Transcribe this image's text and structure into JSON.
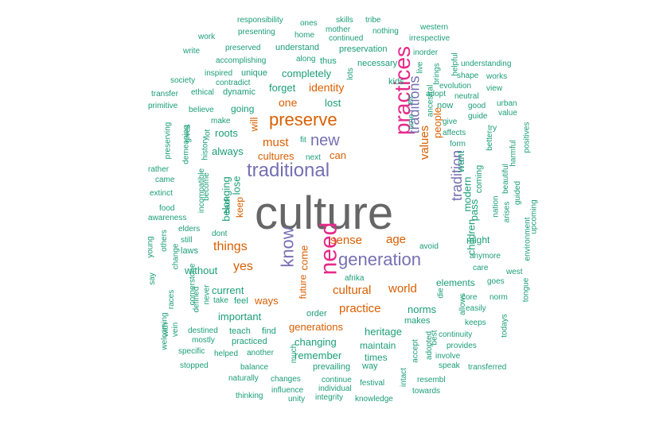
{
  "colors": {
    "teal": "#1b9e77",
    "orange": "#d95f02",
    "purple": "#7570b3",
    "pink": "#e7298a",
    "gray": "#666666"
  },
  "words": [
    {
      "t": "culture",
      "c": "gray"
    },
    {
      "t": "need",
      "c": "pink"
    },
    {
      "t": "practices",
      "c": "pink"
    },
    {
      "t": "traditional",
      "c": "purple"
    },
    {
      "t": "generation",
      "c": "purple"
    },
    {
      "t": "know",
      "c": "purple"
    },
    {
      "t": "preserve",
      "c": "orange"
    },
    {
      "t": "new",
      "c": "purple"
    },
    {
      "t": "traditions",
      "c": "purple"
    },
    {
      "t": "tradition",
      "c": "purple"
    },
    {
      "t": "values",
      "c": "orange"
    },
    {
      "t": "must",
      "c": "orange"
    },
    {
      "t": "identity",
      "c": "orange"
    },
    {
      "t": "one",
      "c": "orange"
    },
    {
      "t": "cultures",
      "c": "orange"
    },
    {
      "t": "can",
      "c": "orange"
    },
    {
      "t": "will",
      "c": "orange"
    },
    {
      "t": "things",
      "c": "orange"
    },
    {
      "t": "yes",
      "c": "orange"
    },
    {
      "t": "sense",
      "c": "orange"
    },
    {
      "t": "age",
      "c": "orange"
    },
    {
      "t": "cultural",
      "c": "orange"
    },
    {
      "t": "world",
      "c": "orange"
    },
    {
      "t": "practice",
      "c": "orange"
    },
    {
      "t": "ways",
      "c": "orange"
    },
    {
      "t": "future",
      "c": "orange"
    },
    {
      "t": "generations",
      "c": "orange"
    },
    {
      "t": "come",
      "c": "orange"
    },
    {
      "t": "keep",
      "c": "orange"
    },
    {
      "t": "lost",
      "c": "teal"
    },
    {
      "t": "forget",
      "c": "teal"
    },
    {
      "t": "completely",
      "c": "teal"
    },
    {
      "t": "going",
      "c": "teal"
    },
    {
      "t": "roots",
      "c": "teal"
    },
    {
      "t": "always",
      "c": "teal"
    },
    {
      "t": "people",
      "c": "orange"
    },
    {
      "t": "modern",
      "c": "teal"
    },
    {
      "t": "want",
      "c": "teal"
    },
    {
      "t": "pass",
      "c": "teal"
    },
    {
      "t": "children",
      "c": "teal"
    },
    {
      "t": "might",
      "c": "teal"
    },
    {
      "t": "coming",
      "c": "teal"
    },
    {
      "t": "heritage",
      "c": "teal"
    },
    {
      "t": "norms",
      "c": "teal"
    },
    {
      "t": "remember",
      "c": "teal"
    },
    {
      "t": "changing",
      "c": "teal"
    },
    {
      "t": "maintain",
      "c": "teal"
    },
    {
      "t": "times",
      "c": "teal"
    },
    {
      "t": "important",
      "c": "teal"
    },
    {
      "t": "current",
      "c": "teal"
    },
    {
      "t": "without",
      "c": "teal"
    },
    {
      "t": "elements",
      "c": "teal"
    },
    {
      "t": "belonging",
      "c": "teal"
    },
    {
      "t": "lose",
      "c": "teal"
    },
    {
      "t": "responsibility",
      "c": "teal"
    },
    {
      "t": "ones",
      "c": "teal"
    },
    {
      "t": "skills",
      "c": "teal"
    },
    {
      "t": "tribe",
      "c": "teal"
    },
    {
      "t": "western",
      "c": "teal"
    },
    {
      "t": "work",
      "c": "teal"
    },
    {
      "t": "presenting",
      "c": "teal"
    },
    {
      "t": "home",
      "c": "teal"
    },
    {
      "t": "mother",
      "c": "teal"
    },
    {
      "t": "continued",
      "c": "teal"
    },
    {
      "t": "nothing",
      "c": "teal"
    },
    {
      "t": "irrespective",
      "c": "teal"
    },
    {
      "t": "write",
      "c": "teal"
    },
    {
      "t": "preserved",
      "c": "teal"
    },
    {
      "t": "understand",
      "c": "teal"
    },
    {
      "t": "preservation",
      "c": "teal"
    },
    {
      "t": "inorder",
      "c": "teal"
    },
    {
      "t": "accomplishing",
      "c": "teal"
    },
    {
      "t": "along",
      "c": "teal"
    },
    {
      "t": "thus",
      "c": "teal"
    },
    {
      "t": "necessary",
      "c": "teal"
    },
    {
      "t": "understanding",
      "c": "teal"
    },
    {
      "t": "inspired",
      "c": "teal"
    },
    {
      "t": "unique",
      "c": "teal"
    },
    {
      "t": "shape",
      "c": "teal"
    },
    {
      "t": "works",
      "c": "teal"
    },
    {
      "t": "society",
      "c": "teal"
    },
    {
      "t": "contradict",
      "c": "teal"
    },
    {
      "t": "kids",
      "c": "teal"
    },
    {
      "t": "evolution",
      "c": "teal"
    },
    {
      "t": "view",
      "c": "teal"
    },
    {
      "t": "transfer",
      "c": "teal"
    },
    {
      "t": "ethical",
      "c": "teal"
    },
    {
      "t": "dynamic",
      "c": "teal"
    },
    {
      "t": "adopt",
      "c": "teal"
    },
    {
      "t": "neutral",
      "c": "teal"
    },
    {
      "t": "primitive",
      "c": "teal"
    },
    {
      "t": "believe",
      "c": "teal"
    },
    {
      "t": "now",
      "c": "teal"
    },
    {
      "t": "good",
      "c": "teal"
    },
    {
      "t": "urban",
      "c": "teal"
    },
    {
      "t": "guide",
      "c": "teal"
    },
    {
      "t": "value",
      "c": "teal"
    },
    {
      "t": "make",
      "c": "teal"
    },
    {
      "t": "give",
      "c": "teal"
    },
    {
      "t": "affects",
      "c": "teal"
    },
    {
      "t": "try",
      "c": "teal"
    },
    {
      "t": "form",
      "c": "teal"
    },
    {
      "t": "fit",
      "c": "teal"
    },
    {
      "t": "next",
      "c": "teal"
    },
    {
      "t": "rather",
      "c": "teal"
    },
    {
      "t": "came",
      "c": "teal"
    },
    {
      "t": "extinct",
      "c": "teal"
    },
    {
      "t": "food",
      "c": "teal"
    },
    {
      "t": "awareness",
      "c": "teal"
    },
    {
      "t": "elders",
      "c": "teal"
    },
    {
      "t": "still",
      "c": "teal"
    },
    {
      "t": "laws",
      "c": "teal"
    },
    {
      "t": "dont",
      "c": "teal"
    },
    {
      "t": "nation",
      "c": "teal"
    },
    {
      "t": "arises",
      "c": "teal"
    },
    {
      "t": "anymore",
      "c": "teal"
    },
    {
      "t": "care",
      "c": "teal"
    },
    {
      "t": "west",
      "c": "teal"
    },
    {
      "t": "goes",
      "c": "teal"
    },
    {
      "t": "avoid",
      "c": "teal"
    },
    {
      "t": "afrika",
      "c": "teal"
    },
    {
      "t": "die",
      "c": "teal"
    },
    {
      "t": "core",
      "c": "teal"
    },
    {
      "t": "norm",
      "c": "teal"
    },
    {
      "t": "easily",
      "c": "teal"
    },
    {
      "t": "keeps",
      "c": "teal"
    },
    {
      "t": "makes",
      "c": "teal"
    },
    {
      "t": "order",
      "c": "teal"
    },
    {
      "t": "take",
      "c": "teal"
    },
    {
      "t": "feel",
      "c": "teal"
    },
    {
      "t": "never",
      "c": "teal"
    },
    {
      "t": "defined",
      "c": "teal"
    },
    {
      "t": "destined",
      "c": "teal"
    },
    {
      "t": "teach",
      "c": "teal"
    },
    {
      "t": "find",
      "c": "teal"
    },
    {
      "t": "mostly",
      "c": "teal"
    },
    {
      "t": "practiced",
      "c": "teal"
    },
    {
      "t": "specific",
      "c": "teal"
    },
    {
      "t": "helped",
      "c": "teal"
    },
    {
      "t": "another",
      "c": "teal"
    },
    {
      "t": "continuity",
      "c": "teal"
    },
    {
      "t": "provides",
      "c": "teal"
    },
    {
      "t": "involve",
      "c": "teal"
    },
    {
      "t": "speak",
      "c": "teal"
    },
    {
      "t": "transferred",
      "c": "teal"
    },
    {
      "t": "stopped",
      "c": "teal"
    },
    {
      "t": "balance",
      "c": "teal"
    },
    {
      "t": "prevailing",
      "c": "teal"
    },
    {
      "t": "way",
      "c": "teal"
    },
    {
      "t": "naturally",
      "c": "teal"
    },
    {
      "t": "changes",
      "c": "teal"
    },
    {
      "t": "continue",
      "c": "teal"
    },
    {
      "t": "festival",
      "c": "teal"
    },
    {
      "t": "resembl",
      "c": "teal"
    },
    {
      "t": "individual",
      "c": "teal"
    },
    {
      "t": "thinking",
      "c": "teal"
    },
    {
      "t": "influence",
      "c": "teal"
    },
    {
      "t": "unity",
      "c": "teal"
    },
    {
      "t": "integrity",
      "c": "teal"
    },
    {
      "t": "knowledge",
      "c": "teal"
    },
    {
      "t": "towards",
      "c": "teal"
    },
    {
      "t": "much",
      "c": "teal"
    },
    {
      "t": "accept",
      "c": "teal"
    },
    {
      "t": "adopted",
      "c": "teal"
    },
    {
      "t": "intact",
      "c": "teal"
    },
    {
      "t": "best",
      "c": "teal"
    },
    {
      "t": "allows",
      "c": "teal"
    },
    {
      "t": "todays",
      "c": "teal"
    },
    {
      "t": "tongue",
      "c": "teal"
    },
    {
      "t": "upcoming",
      "c": "teal"
    },
    {
      "t": "environment",
      "c": "teal"
    },
    {
      "t": "guided",
      "c": "teal"
    },
    {
      "t": "beautiful",
      "c": "teal"
    },
    {
      "t": "harmful",
      "c": "teal"
    },
    {
      "t": "positives",
      "c": "teal"
    },
    {
      "t": "better",
      "c": "teal"
    },
    {
      "t": "helpful",
      "c": "teal"
    },
    {
      "t": "brings",
      "c": "teal"
    },
    {
      "t": "live",
      "c": "teal"
    },
    {
      "t": "ancestral",
      "c": "teal"
    },
    {
      "t": "etc",
      "c": "teal"
    },
    {
      "t": "time",
      "c": "teal"
    },
    {
      "t": "lots",
      "c": "teal"
    },
    {
      "t": "preserving",
      "c": "teal"
    },
    {
      "t": "demeaning",
      "c": "teal"
    },
    {
      "t": "gives",
      "c": "teal"
    },
    {
      "t": "history",
      "c": "teal"
    },
    {
      "t": "lot",
      "c": "teal"
    },
    {
      "t": "incompatible",
      "c": "teal"
    },
    {
      "t": "become",
      "c": "teal"
    },
    {
      "t": "back",
      "c": "teal"
    },
    {
      "t": "young",
      "c": "teal"
    },
    {
      "t": "others",
      "c": "teal"
    },
    {
      "t": "change",
      "c": "teal"
    },
    {
      "t": "say",
      "c": "teal"
    },
    {
      "t": "races",
      "c": "teal"
    },
    {
      "t": "cornerstone",
      "c": "teal"
    },
    {
      "t": "welcoming",
      "c": "teal"
    },
    {
      "t": "with",
      "c": "teal"
    },
    {
      "t": "vein",
      "c": "teal"
    }
  ]
}
